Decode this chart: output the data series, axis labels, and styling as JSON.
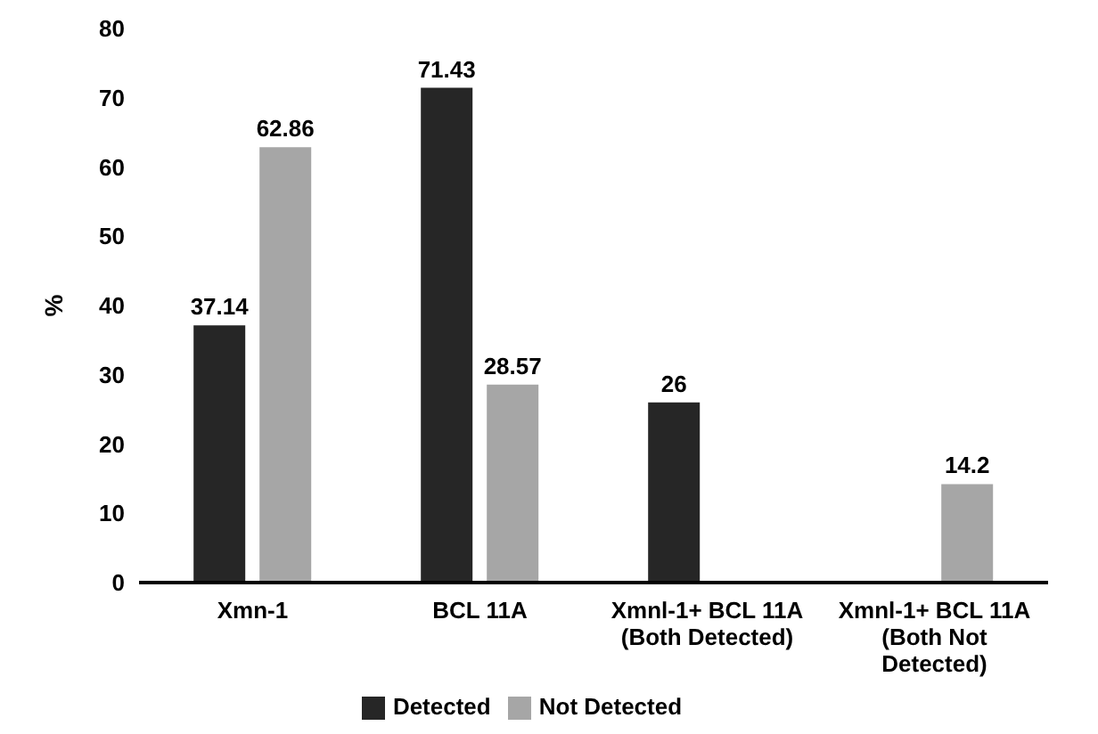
{
  "chart_data": {
    "type": "bar",
    "ylabel": "%",
    "categories": [
      "Xmn-1",
      "BCL 11A",
      "Xmnl-1+ BCL 11A (Both Detected)",
      "Xmnl-1+ BCL 11A (Both Not Detected)"
    ],
    "series": [
      {
        "name": "Detected",
        "color": "#262626",
        "values": [
          37.14,
          71.43,
          26,
          null
        ]
      },
      {
        "name": "Not Detected",
        "color": "#a6a6a6",
        "values": [
          62.86,
          28.57,
          null,
          14.2
        ]
      }
    ],
    "ylim": [
      0,
      80
    ],
    "yticks": [
      0,
      10,
      20,
      30,
      40,
      50,
      60,
      70,
      80
    ],
    "grid": false,
    "legend": "bottom",
    "data_labels": true
  }
}
